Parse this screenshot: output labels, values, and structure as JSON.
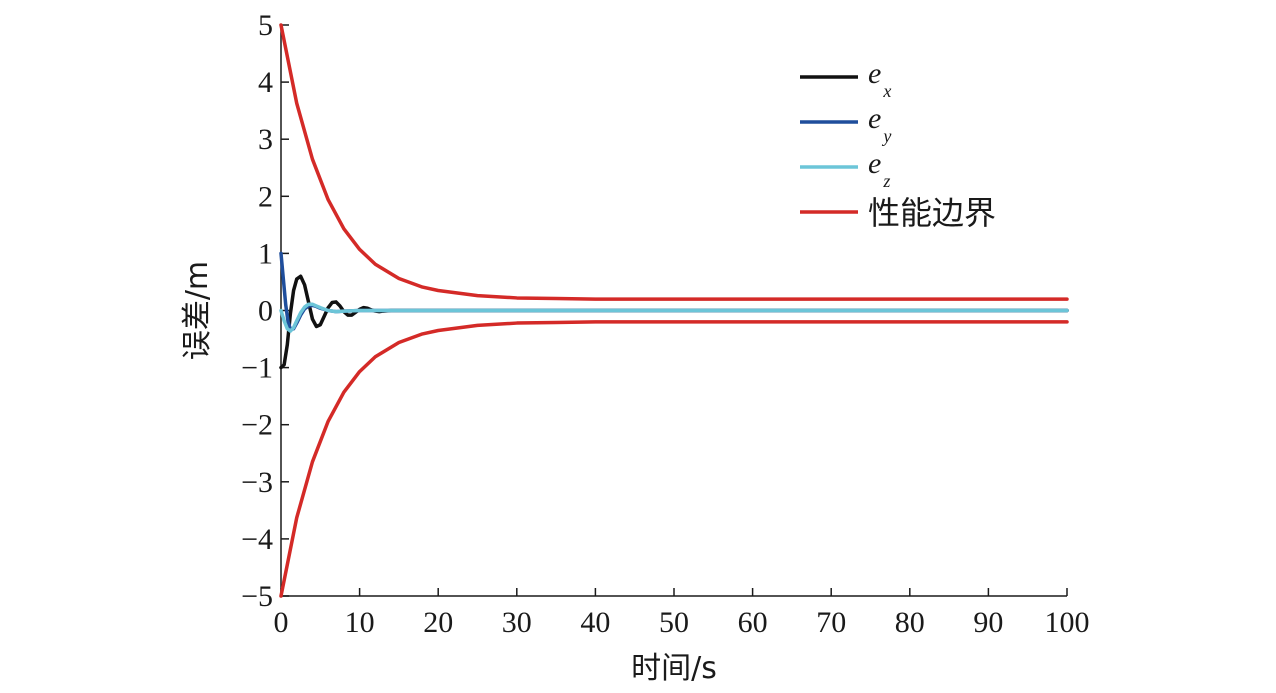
{
  "chart_data": {
    "type": "line",
    "xlabel": "时间/s",
    "ylabel": "误差/m",
    "xlim": [
      0,
      100
    ],
    "ylim": [
      -5,
      5
    ],
    "xticks": [
      "0",
      "10",
      "20",
      "30",
      "40",
      "50",
      "60",
      "70",
      "80",
      "90",
      "100"
    ],
    "yticks": [
      "5",
      "4",
      "3",
      "2",
      "1",
      "0",
      "−1",
      "−2",
      "−3",
      "−4",
      "−5"
    ],
    "legend_position": "top-right",
    "grid": false,
    "series": [
      {
        "name": "e",
        "subscript": "x",
        "color": "#111111",
        "x": [
          0,
          0.4,
          0.8,
          1.2,
          1.6,
          2.0,
          2.5,
          3.0,
          3.5,
          4.0,
          4.5,
          5.0,
          5.5,
          6.0,
          6.5,
          7.0,
          7.5,
          8.0,
          8.5,
          9.0,
          9.5,
          10.0,
          10.5,
          11.0,
          11.5,
          12.0,
          12.5,
          13.0,
          14.0,
          100
        ],
        "y": [
          -1.0,
          -0.95,
          -0.6,
          -0.05,
          0.35,
          0.55,
          0.6,
          0.45,
          0.15,
          -0.15,
          -0.28,
          -0.25,
          -0.1,
          0.05,
          0.14,
          0.15,
          0.08,
          -0.02,
          -0.08,
          -0.08,
          -0.03,
          0.02,
          0.05,
          0.04,
          0.01,
          -0.01,
          -0.02,
          -0.01,
          0.0,
          0.0
        ]
      },
      {
        "name": "e",
        "subscript": "y",
        "color": "#1f4e9c",
        "x": [
          0,
          0.3,
          0.6,
          0.9,
          1.2,
          1.6,
          2.0,
          2.5,
          3.0,
          3.5,
          4.0,
          4.5,
          5.0,
          6.0,
          7.0,
          8.0,
          10.0,
          100
        ],
        "y": [
          1.0,
          0.55,
          0.1,
          -0.2,
          -0.33,
          -0.32,
          -0.22,
          -0.08,
          0.03,
          0.08,
          0.09,
          0.07,
          0.04,
          0.0,
          -0.02,
          -0.01,
          0.0,
          0.0
        ]
      },
      {
        "name": "e",
        "subscript": "z",
        "color": "#6cc5d8",
        "x": [
          0,
          0.4,
          0.8,
          1.2,
          1.6,
          2.0,
          2.5,
          3.0,
          3.5,
          4.0,
          4.5,
          5.0,
          6.0,
          7.0,
          8.0,
          10.0,
          100
        ],
        "y": [
          0.0,
          -0.18,
          -0.32,
          -0.36,
          -0.3,
          -0.18,
          -0.04,
          0.06,
          0.11,
          0.11,
          0.08,
          0.05,
          0.0,
          -0.02,
          -0.01,
          0.0,
          0.0
        ]
      },
      {
        "name": "性能边界",
        "color": "#d42a27",
        "x": [
          0,
          2,
          4,
          6,
          8,
          10,
          12,
          15,
          18,
          20,
          25,
          30,
          35,
          40,
          50,
          60,
          70,
          80,
          90,
          100
        ],
        "y": [
          5.0,
          3.63,
          2.65,
          1.94,
          1.43,
          1.07,
          0.81,
          0.56,
          0.41,
          0.35,
          0.26,
          0.22,
          0.21,
          0.2,
          0.2,
          0.2,
          0.2,
          0.2,
          0.2,
          0.2
        ]
      },
      {
        "name": "",
        "color": "#d42a27",
        "x": [
          0,
          2,
          4,
          6,
          8,
          10,
          12,
          15,
          18,
          20,
          25,
          30,
          35,
          40,
          50,
          60,
          70,
          80,
          90,
          100
        ],
        "y": [
          -5.0,
          -3.63,
          -2.65,
          -1.94,
          -1.43,
          -1.07,
          -0.81,
          -0.56,
          -0.41,
          -0.35,
          -0.26,
          -0.22,
          -0.21,
          -0.2,
          -0.2,
          -0.2,
          -0.2,
          -0.2,
          -0.2,
          -0.2
        ]
      }
    ]
  }
}
